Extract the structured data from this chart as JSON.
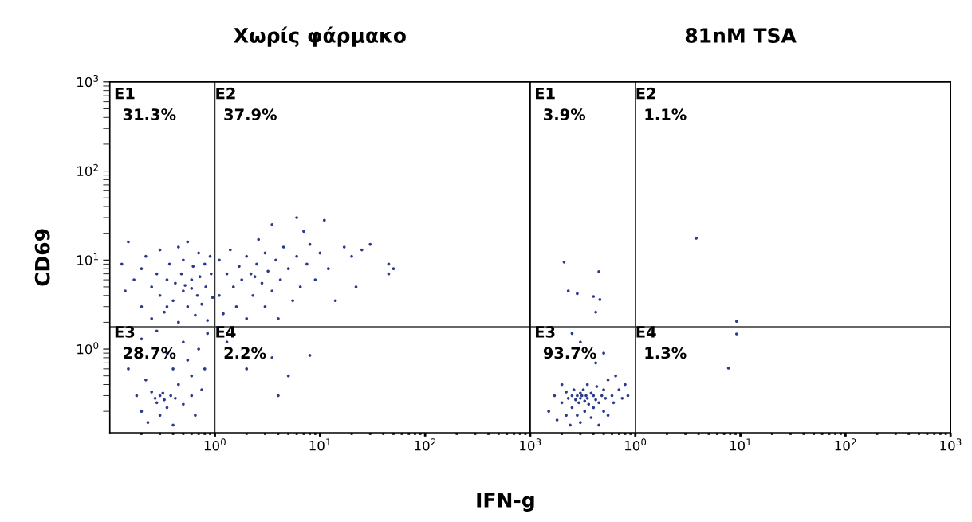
{
  "chart_data": [
    {
      "type": "scatter",
      "title": "Χωρίς φάρμακο",
      "xlabel": "IFN-g",
      "ylabel": "CD69",
      "log": "xy",
      "grid": false,
      "legend": false,
      "xlim": [
        0.1,
        1000
      ],
      "ylim": [
        0.115,
        1000
      ],
      "xticks": [
        {
          "value": 1,
          "label": "10$^{0}$"
        },
        {
          "value": 10,
          "label": "10$^{1}$"
        },
        {
          "value": 100,
          "label": "10$^{2}$"
        },
        {
          "value": 1000,
          "label": "10$^{3}$"
        }
      ],
      "yticks": [
        {
          "value": 1,
          "label": "10$^{0}$"
        },
        {
          "value": 10,
          "label": "10$^{1}$"
        },
        {
          "value": 100,
          "label": "10$^{2}$"
        },
        {
          "value": 1000,
          "label": "10$^{3}$"
        }
      ],
      "ref_lines": [
        {
          "axis": "x",
          "value": 1,
          "color": "#333333"
        },
        {
          "axis": "y",
          "value": 1.78,
          "color": "#333333"
        }
      ],
      "annotations": [
        "E1",
        "31.3%",
        "E2",
        "37.9%",
        "E3",
        "28.7%",
        "E4",
        "2.2%"
      ],
      "series": [
        {
          "color": "#2b3a8a",
          "x": [
            0.15,
            0.13,
            0.14,
            0.17,
            0.2,
            0.2,
            0.22,
            0.25,
            0.25,
            0.28,
            0.3,
            0.3,
            0.33,
            0.35,
            0.37,
            0.4,
            0.42,
            0.45,
            0.45,
            0.48,
            0.5,
            0.5,
            0.52,
            0.55,
            0.55,
            0.6,
            0.62,
            0.65,
            0.68,
            0.7,
            0.72,
            0.75,
            0.8,
            0.82,
            0.85,
            0.9,
            0.92,
            0.95,
            0.35,
            0.6,
            1.1,
            1.1,
            1.2,
            1.3,
            1.4,
            1.5,
            1.6,
            1.7,
            1.8,
            2,
            2,
            2.2,
            2.3,
            2.4,
            2.5,
            2.6,
            2.8,
            3,
            3,
            3.2,
            3.5,
            3.5,
            3.8,
            4,
            4.2,
            4.5,
            5,
            5.5,
            6,
            6,
            6.5,
            7,
            7.5,
            8,
            9,
            10,
            11,
            12,
            14,
            17,
            20,
            22,
            25,
            30,
            45,
            50,
            45,
            0.15,
            0.18,
            0.2,
            0.22,
            0.23,
            0.25,
            0.27,
            0.28,
            0.3,
            0.3,
            0.32,
            0.33,
            0.35,
            0.35,
            0.38,
            0.4,
            0.4,
            0.42,
            0.45,
            0.5,
            0.5,
            0.55,
            0.6,
            0.6,
            0.65,
            0.7,
            0.75,
            0.8,
            0.85,
            0.2,
            0.28,
            1.3,
            2,
            3.5,
            4,
            8,
            5
          ],
          "values": [
            16,
            9,
            4.5,
            6,
            3,
            8,
            11,
            5,
            2.2,
            7,
            4,
            13,
            2.6,
            6,
            9,
            3.5,
            5.5,
            14,
            2,
            7,
            4.5,
            10,
            5.2,
            3,
            16,
            6,
            8.5,
            2.4,
            4,
            12,
            6.5,
            3.2,
            9,
            5,
            2.1,
            11,
            7,
            3.8,
            3,
            4.8,
            10,
            4,
            2.5,
            7,
            13,
            5,
            3,
            8.5,
            6,
            11,
            2.2,
            7,
            4,
            6.5,
            9,
            17,
            5.5,
            3,
            12,
            7.5,
            25,
            4.5,
            10,
            2.2,
            6,
            14,
            8,
            3.5,
            30,
            11,
            5,
            21,
            9,
            15,
            6,
            12,
            28,
            8,
            3.5,
            14,
            11,
            5,
            13,
            15,
            9,
            8,
            7,
            0.6,
            0.3,
            0.2,
            0.45,
            0.15,
            0.33,
            0.28,
            0.25,
            0.3,
            0.18,
            0.32,
            0.27,
            0.9,
            0.22,
            0.3,
            0.6,
            0.14,
            0.28,
            0.4,
            1.2,
            0.24,
            0.75,
            0.5,
            0.3,
            0.18,
            1.0,
            0.35,
            0.6,
            1.5,
            1.3,
            1.6,
            1.2,
            0.6,
            0.8,
            0.3,
            0.85,
            0.5
          ]
        }
      ]
    },
    {
      "type": "scatter",
      "title": "81nM TSA",
      "log": "xy",
      "grid": false,
      "legend": false,
      "tick_labels": "x",
      "xlim": [
        0.1,
        1000
      ],
      "ylim": [
        0.115,
        1000
      ],
      "xticks": [
        {
          "value": 1,
          "label": "10$^{0}$"
        },
        {
          "value": 10,
          "label": "10$^{1}$"
        },
        {
          "value": 100,
          "label": "10$^{2}$"
        },
        {
          "value": 1000,
          "label": "10$^{3}$"
        }
      ],
      "ref_lines": [
        {
          "axis": "x",
          "value": 1,
          "color": "#333333"
        },
        {
          "axis": "y",
          "value": 1.78,
          "color": "#333333"
        }
      ],
      "annotations": [
        "E1",
        "3.9%",
        "E2",
        "1.1%",
        "E3",
        "93.7%",
        "E4",
        "1.3%"
      ],
      "series": [
        {
          "color": "#2b3a8a",
          "x": [
            0.21,
            0.45,
            0.23,
            0.28,
            0.4,
            0.46,
            0.42,
            3.8,
            9.2,
            9.2,
            7.7,
            0.15,
            0.17,
            0.18,
            0.2,
            0.2,
            0.22,
            0.22,
            0.23,
            0.24,
            0.25,
            0.25,
            0.26,
            0.27,
            0.28,
            0.28,
            0.29,
            0.3,
            0.3,
            0.3,
            0.31,
            0.32,
            0.33,
            0.33,
            0.34,
            0.35,
            0.35,
            0.36,
            0.38,
            0.38,
            0.4,
            0.4,
            0.42,
            0.43,
            0.45,
            0.45,
            0.48,
            0.5,
            0.5,
            0.52,
            0.55,
            0.55,
            0.6,
            0.62,
            0.65,
            0.7,
            0.75,
            0.8,
            0.85,
            0.3,
            0.25,
            0.5,
            0.42
          ],
          "values": [
            9.5,
            7.4,
            4.5,
            4.2,
            3.9,
            3.6,
            2.6,
            17.6,
            2.05,
            1.48,
            0.61,
            0.2,
            0.3,
            0.16,
            0.25,
            0.4,
            0.18,
            0.33,
            0.28,
            0.14,
            0.3,
            0.22,
            0.35,
            0.27,
            0.3,
            0.18,
            0.25,
            0.32,
            0.28,
            0.15,
            0.3,
            0.35,
            0.26,
            0.2,
            0.3,
            0.28,
            0.4,
            0.24,
            0.32,
            0.17,
            0.3,
            0.22,
            0.27,
            0.38,
            0.25,
            0.14,
            0.3,
            0.35,
            0.2,
            0.28,
            0.45,
            0.18,
            0.3,
            0.25,
            0.5,
            0.35,
            0.28,
            0.4,
            0.3,
            1.2,
            1.5,
            0.9,
            0.7
          ]
        }
      ]
    }
  ]
}
